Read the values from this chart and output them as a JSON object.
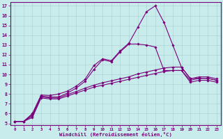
{
  "xlabel": "Windchill (Refroidissement éolien,°C)",
  "bg_color": "#c8ecec",
  "line_color": "#7b007b",
  "grid_color": "#b0d4d4",
  "xlim": [
    -0.5,
    23.5
  ],
  "ylim": [
    4.8,
    17.4
  ],
  "xticks": [
    0,
    1,
    2,
    3,
    4,
    5,
    6,
    7,
    8,
    9,
    10,
    11,
    12,
    13,
    14,
    15,
    16,
    17,
    18,
    19,
    20,
    21,
    22,
    23
  ],
  "yticks": [
    5,
    6,
    7,
    8,
    9,
    10,
    11,
    12,
    13,
    14,
    15,
    16,
    17
  ],
  "lines": [
    {
      "x": [
        0,
        1,
        2,
        3,
        4,
        5,
        6,
        7,
        8,
        9,
        10,
        11,
        12,
        13,
        14,
        15,
        16,
        17,
        18,
        19,
        20,
        21,
        22,
        23
      ],
      "y": [
        5.2,
        5.2,
        5.6,
        7.6,
        7.5,
        7.5,
        7.8,
        8.1,
        8.4,
        8.7,
        8.9,
        9.1,
        9.3,
        9.5,
        9.7,
        9.9,
        10.1,
        10.3,
        10.4,
        10.4,
        9.2,
        9.4,
        9.4,
        9.2
      ]
    },
    {
      "x": [
        0,
        1,
        2,
        3,
        4,
        5,
        6,
        7,
        8,
        9,
        10,
        11,
        12,
        13,
        14,
        15,
        16,
        17,
        18,
        19,
        20,
        21,
        22,
        23
      ],
      "y": [
        5.2,
        5.2,
        5.75,
        7.7,
        7.6,
        7.6,
        7.95,
        8.25,
        8.6,
        8.9,
        9.15,
        9.35,
        9.55,
        9.75,
        10.05,
        10.25,
        10.45,
        10.65,
        10.75,
        10.75,
        9.55,
        9.75,
        9.75,
        9.55
      ]
    },
    {
      "x": [
        0,
        1,
        2,
        3,
        4,
        5,
        6,
        7,
        8,
        9,
        10,
        11,
        12,
        13,
        14,
        15,
        16,
        17,
        18,
        19,
        20,
        21,
        22,
        23
      ],
      "y": [
        5.2,
        5.2,
        5.9,
        7.8,
        7.7,
        7.7,
        8.1,
        8.6,
        9.3,
        10.5,
        11.5,
        11.3,
        12.3,
        13.1,
        13.1,
        13.0,
        12.8,
        10.4,
        10.4,
        10.4,
        9.4,
        9.6,
        9.6,
        9.4
      ]
    },
    {
      "x": [
        0,
        1,
        2,
        3,
        4,
        5,
        6,
        7,
        8,
        9,
        10,
        11,
        12,
        13,
        14,
        15,
        16,
        17,
        18,
        19,
        20,
        21,
        22,
        23
      ],
      "y": [
        5.2,
        5.2,
        6.0,
        7.9,
        7.85,
        8.0,
        8.3,
        8.8,
        9.5,
        10.9,
        11.6,
        11.4,
        12.4,
        13.2,
        14.8,
        16.4,
        17.0,
        15.3,
        13.0,
        10.7,
        9.6,
        9.6,
        9.6,
        9.4
      ]
    }
  ]
}
